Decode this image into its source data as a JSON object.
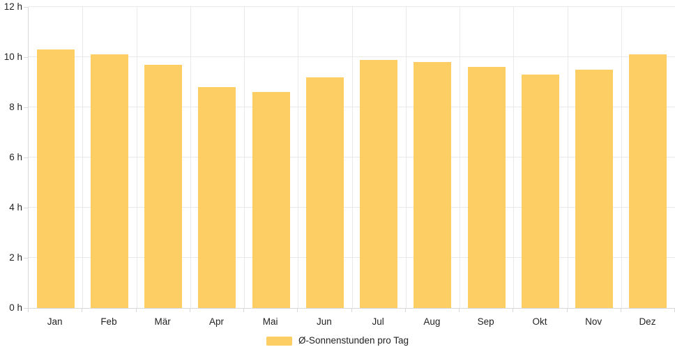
{
  "chart_data": {
    "type": "bar",
    "title": "",
    "xlabel": "",
    "ylabel": "",
    "categories": [
      "Jan",
      "Feb",
      "Mär",
      "Apr",
      "Mai",
      "Jun",
      "Jul",
      "Aug",
      "Sep",
      "Okt",
      "Nov",
      "Dez"
    ],
    "series": [
      {
        "name": "Ø-Sonnenstunden pro Tag",
        "values": [
          10.3,
          10.1,
          9.7,
          8.8,
          8.6,
          9.2,
          9.9,
          9.8,
          9.6,
          9.3,
          9.5,
          10.1
        ]
      }
    ],
    "ylim": [
      0,
      12
    ],
    "y_ticks": [
      0,
      2,
      4,
      6,
      8,
      10,
      12
    ],
    "y_tick_labels": [
      "0 h",
      "2 h",
      "4 h",
      "6 h",
      "8 h",
      "10 h",
      "12 h"
    ],
    "grid": true,
    "legend_position": "bottom",
    "colors": {
      "bar": "#FCCE63",
      "gridline": "#e9e9e9",
      "axis": "#d8d8d8",
      "text": "#222222"
    }
  },
  "legend": {
    "label": "Ø-Sonnenstunden pro Tag",
    "swatch_color": "#FCCE63"
  }
}
